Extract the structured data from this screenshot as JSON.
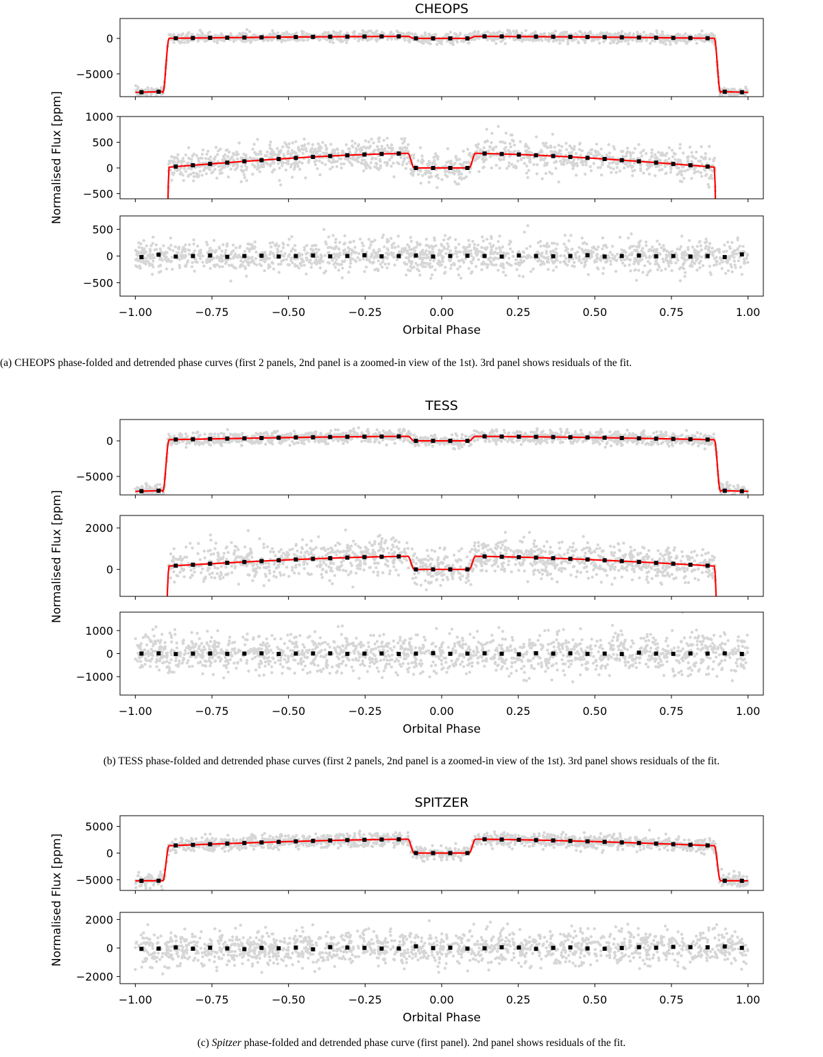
{
  "figures": [
    {
      "title": "CHEOPS",
      "ylabel": "Normalised Flux [ppm]",
      "xlabel": "Orbital Phase",
      "caption": "(a) CHEOPS phase-folded and detrended phase curves (first 2 panels, 2nd panel is a zoomed-in view of the 1st). 3rd panel shows residuals of the fit."
    },
    {
      "title": "TESS",
      "ylabel": "Normalised Flux [ppm]",
      "xlabel": "Orbital Phase",
      "caption": "(b) TESS phase-folded and detrended phase curves (first 2 panels, 2nd panel is a zoomed-in view of the 1st). 3rd panel shows residuals of the fit."
    },
    {
      "title": "SPITZER",
      "ylabel": "Normalised Flux [ppm]",
      "xlabel": "Orbital Phase",
      "caption_em": "Spitzer",
      "caption_rest": " phase-folded and detrended phase curve (first panel). 2nd panel shows residuals of the fit.",
      "caption_prefix": "(c) "
    }
  ],
  "chart_data": [
    {
      "type": "scatter",
      "title": "CHEOPS",
      "xlabel": "Orbital Phase",
      "ylabel": "Normalised Flux [ppm]",
      "xlim": [
        -1.05,
        1.05
      ],
      "xticks": [
        -1.0,
        -0.75,
        -0.5,
        -0.25,
        0.0,
        0.25,
        0.5,
        0.75,
        1.0
      ],
      "xtick_labels": [
        "−1.00",
        "−0.75",
        "−0.50",
        "−0.25",
        "0.00",
        "0.25",
        "0.50",
        "0.75",
        "1.00"
      ],
      "model": {
        "transit_depth": 7600,
        "eclipse_depth": 320,
        "amp": 320,
        "offset": 20,
        "edge": 0.9,
        "ecl_half": 0.1,
        "ingress": 0.02
      },
      "panels": [
        {
          "kind": "full",
          "ylim": [
            -8200,
            2800
          ],
          "yticks": [
            0,
            -5000
          ],
          "ytick_labels": [
            "0",
            "−5000"
          ],
          "noise": 350
        },
        {
          "kind": "zoom",
          "ylim": [
            -600,
            1000
          ],
          "yticks": [
            1000,
            500,
            0,
            -500
          ],
          "ytick_labels": [
            "1000",
            "500",
            "0",
            "−500"
          ],
          "noise": 150
        },
        {
          "kind": "resid",
          "ylim": [
            -750,
            750
          ],
          "yticks": [
            500,
            0,
            -500
          ],
          "ytick_labels": [
            "500",
            "0",
            "−500"
          ],
          "noise": 150,
          "binned": [
            -20,
            25,
            -10,
            0,
            10,
            -15,
            0,
            5,
            -10,
            0,
            10,
            -5,
            0,
            15,
            -5,
            0,
            10,
            -10,
            0,
            5,
            0,
            -10,
            10,
            0,
            -5,
            0,
            15,
            -10,
            0,
            10,
            -5,
            0,
            -10,
            0,
            -20,
            30
          ]
        }
      ]
    },
    {
      "type": "scatter",
      "title": "TESS",
      "xlabel": "Orbital Phase",
      "ylabel": "Normalised Flux [ppm]",
      "xlim": [
        -1.05,
        1.05
      ],
      "xticks": [
        -1.0,
        -0.75,
        -0.5,
        -0.25,
        0.0,
        0.25,
        0.5,
        0.75,
        1.0
      ],
      "xtick_labels": [
        "−1.00",
        "−0.75",
        "−0.50",
        "−0.25",
        "0.00",
        "0.25",
        "0.50",
        "0.75",
        "1.00"
      ],
      "model": {
        "transit_depth": 7100,
        "eclipse_depth": 620,
        "amp": 560,
        "offset": 170,
        "edge": 0.9,
        "ecl_half": 0.1,
        "ingress": 0.02
      },
      "panels": [
        {
          "kind": "full",
          "ylim": [
            -7600,
            3000
          ],
          "yticks": [
            0,
            -5000
          ],
          "ytick_labels": [
            "0",
            "−5000"
          ],
          "noise": 450
        },
        {
          "kind": "zoom",
          "ylim": [
            -1300,
            2600
          ],
          "yticks": [
            2000,
            0
          ],
          "ytick_labels": [
            "2000",
            "0"
          ],
          "noise": 420
        },
        {
          "kind": "resid",
          "ylim": [
            -1800,
            1800
          ],
          "yticks": [
            1000,
            0,
            -1000
          ],
          "ytick_labels": [
            "1000",
            "0",
            "−1000"
          ],
          "noise": 420,
          "binned": [
            0,
            10,
            -20,
            0,
            5,
            -10,
            0,
            10,
            -15,
            0,
            5,
            10,
            -10,
            0,
            5,
            -15,
            0,
            20,
            -10,
            0,
            10,
            -5,
            -30,
            15,
            0,
            10,
            -10,
            0,
            -20,
            40,
            0,
            -10,
            5,
            0,
            10,
            -15
          ]
        }
      ]
    },
    {
      "type": "scatter",
      "title": "SPITZER",
      "xlabel": "Orbital Phase",
      "ylabel": "Normalised Flux [ppm]",
      "xlim": [
        -1.05,
        1.05
      ],
      "xticks": [
        -1.0,
        -0.75,
        -0.5,
        -0.25,
        0.0,
        0.25,
        0.5,
        0.75,
        1.0
      ],
      "xtick_labels": [
        "−1.00",
        "−0.75",
        "−0.50",
        "−0.25",
        "0.00",
        "0.25",
        "0.50",
        "0.75",
        "1.00"
      ],
      "model": {
        "transit_depth": 5200,
        "eclipse_depth": 2800,
        "amp": 1450,
        "offset": 1400,
        "edge": 0.9,
        "ecl_half": 0.1,
        "ingress": 0.02
      },
      "panels": [
        {
          "kind": "full",
          "ylim": [
            -7000,
            7000
          ],
          "yticks": [
            5000,
            0,
            -5000
          ],
          "ytick_labels": [
            "5000",
            "0",
            "−5000"
          ],
          "noise": 650
        },
        {
          "kind": "resid",
          "ylim": [
            -2500,
            2500
          ],
          "yticks": [
            2000,
            0,
            -2000
          ],
          "ytick_labels": [
            "2000",
            "0",
            "−2000"
          ],
          "noise": 600,
          "binned": [
            -60,
            -40,
            40,
            -50,
            20,
            -30,
            -80,
            10,
            -20,
            30,
            -90,
            60,
            30,
            10,
            -40,
            -30,
            120,
            -10,
            20,
            -40,
            -20,
            50,
            30,
            -60,
            10,
            40,
            -30,
            -50,
            0,
            60,
            20,
            80,
            60,
            50,
            110,
            10
          ]
        }
      ]
    }
  ]
}
